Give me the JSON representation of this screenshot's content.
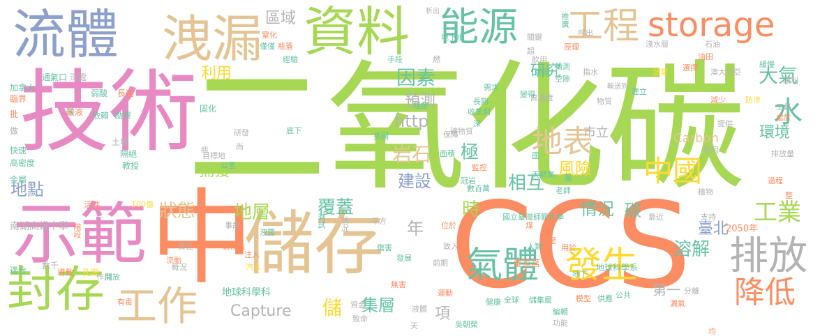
{
  "palette": {
    "green": "#a6d854",
    "orange": "#fc8d62",
    "pink": "#e78ac3",
    "blue": "#8da0cb",
    "teal": "#66c2a5",
    "tan": "#e5c494",
    "yellow": "#ffd92f",
    "gray": "#b3b3b3"
  },
  "words": [
    "二氧化碳",
    "技術",
    "CCS",
    "中",
    "示範",
    "儲存",
    "資料",
    "流體",
    "洩漏",
    "能源",
    "工程",
    "storage",
    "排放",
    "封存",
    "工作",
    "氣體",
    "發生",
    "降低",
    "地表",
    "中國",
    "水",
    "大氣",
    "環境",
    "工業",
    "溶解",
    "研究",
    "因素",
    "預測",
    "岩石",
    "建設",
    "極",
    "相互",
    "狀態",
    "地層",
    "覆蓋",
    "情況",
    "碳",
    "時",
    "年",
    "風險",
    "http",
    "集層",
    "儲",
    "項",
    "地點",
    "捕獲",
    "區域",
    "利用",
    "Capture",
    "地球科學科",
    "第一",
    "臺北",
    "Carbon",
    "南湖高級中學",
    "國立臺灣師範大學",
    "董家莒",
    "地球科學系",
    "市立",
    "2050年",
    "通氣口",
    "深處",
    "加拿大",
    "臨界",
    "批",
    "做",
    "快速",
    "高密度",
    "金屬",
    "階段",
    "適合",
    "數千",
    "有毒",
    "弱酸",
    "長達",
    "酸液",
    "依賴",
    "勘察",
    "固化",
    "土壤",
    "隔絕",
    "教授",
    "研發",
    "底下",
    "尚",
    "目標地",
    "公里",
    "活性",
    "導致",
    "孔隙",
    "作用",
    "開放",
    "100億",
    "責任",
    "儲存點",
    "注入",
    "流動",
    "汽水",
    "概況",
    "事故",
    "洩露",
    "測試",
    "狀況",
    "平方",
    "傷害",
    "發展",
    "前期",
    "資金",
    "致命",
    "無害",
    "液體",
    "天",
    "運動",
    "吳朝榮",
    "瓶蓋",
    "經驗",
    "手段",
    "燃",
    "析出",
    "窒化",
    "僅僅",
    "地下水",
    "推廣",
    "關鍵",
    "超",
    "呼出",
    "原理",
    "飲用",
    "美國",
    "猜測",
    "程度",
    "空隙",
    "高濃度",
    "指水",
    "需求",
    "長期",
    "收集到",
    "深",
    "礦物質",
    "英國",
    "保障",
    "面積",
    "監控",
    "冠岩",
    "數百萬",
    "國",
    "屬",
    "老師",
    "瓶",
    "天然氣",
    "位於",
    "致入",
    "煤",
    "人類",
    "高壓",
    "用於",
    "地下",
    "健康",
    "全球",
    "儲集層",
    "編輯",
    "模型",
    "供應",
    "公共",
    "功能",
    "分離",
    "漏氣",
    "均",
    "變得",
    "物質",
    "輸送到",
    "建立",
    "選擇",
    "油田",
    "石油",
    "淺水層",
    "澳大利亞",
    "溫室",
    "緩慢",
    "順利",
    "減少",
    "防滲",
    "工具",
    "處於",
    "提供",
    "原因",
    "排放量",
    "過程",
    "整",
    "植物",
    "支持",
    "靠近",
    "米"
  ]
}
